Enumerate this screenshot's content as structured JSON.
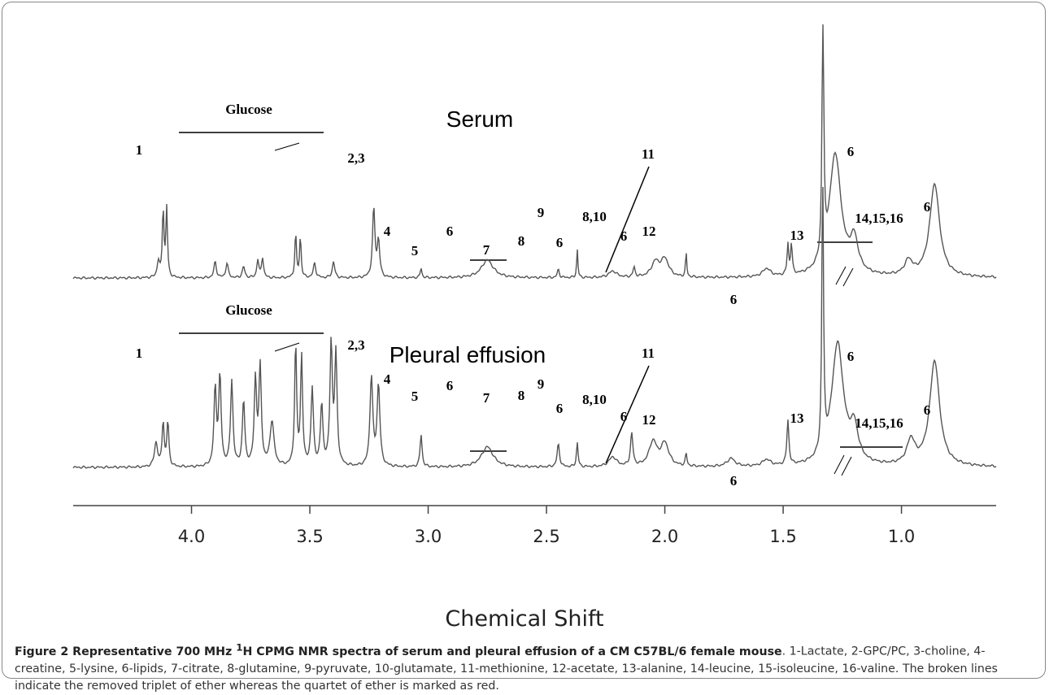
{
  "figure": {
    "spectra": [
      {
        "name": "Serum",
        "peak_labels": [
          "Glucose",
          "1",
          "2,3",
          "4",
          "5",
          "6",
          "7",
          "8",
          "9",
          "6",
          "8,10",
          "11",
          "6",
          "12",
          "6",
          "13",
          "6",
          "14,15,16",
          "6"
        ]
      },
      {
        "name": "Pleural effusion",
        "peak_labels": [
          "Glucose",
          "1",
          "2,3",
          "4",
          "5",
          "6",
          "7",
          "8",
          "9",
          "6",
          "8,10",
          "11",
          "6",
          "12",
          "6",
          "13",
          "6",
          "14,15,16",
          "6"
        ]
      }
    ],
    "axis": {
      "label": "Chemical Shift",
      "xlim": [
        4.5,
        0.6
      ],
      "xticks": [
        {
          "value": 4,
          "label": "4.0"
        },
        3.5,
        {
          "value": 3,
          "label": "3.0"
        },
        2.5,
        {
          "value": 2,
          "label": "2.0"
        },
        1.5,
        {
          "value": 1,
          "label": "1.0"
        }
      ]
    }
  },
  "caption": {
    "title_pre": "Figure 2 Representative 700 MHz ",
    "title_sup": "1",
    "title_post": "H CPMG NMR spectra of serum and pleural effusion of a CM C57BL/6 female mouse",
    "text": ". 1-Lactate, 2-GPC/PC, 3-choline, 4-creatine, 5-lysine, 6-lipids, 7-citrate, 8-glutamine, 9-pyruvate, 10-glutamate, 11-methionine, 12-acetate, 13-alanine, 14-leucine, 15-isoleucine, 16-valine. The broken lines indicate the removed triplet of ether whereas the quartet of ether is marked as red."
  }
}
